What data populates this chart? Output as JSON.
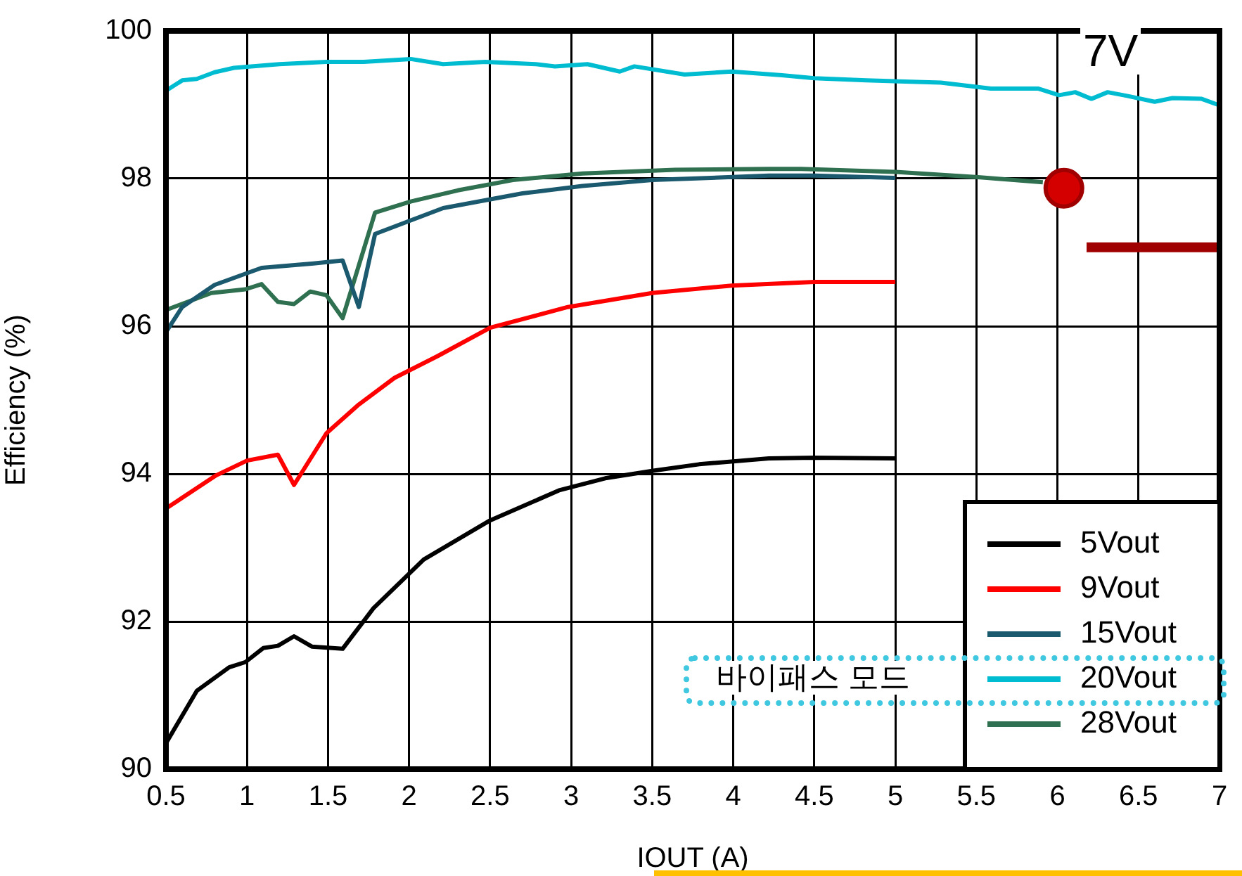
{
  "chart_data": {
    "type": "line",
    "xlabel": "IOUT (A)",
    "ylabel": "Efficiency (%)",
    "xlim": [
      0.5,
      7
    ],
    "xticks": [
      0.5,
      1,
      1.5,
      2,
      2.5,
      3,
      3.5,
      4,
      4.5,
      5,
      5.5,
      6,
      6.5,
      7
    ],
    "ylim": [
      90,
      100
    ],
    "yticks": [
      90,
      92,
      94,
      96,
      98,
      100
    ],
    "grid": true,
    "legend": "bottom right",
    "marker": "none",
    "line_style": "solid",
    "annotations": [
      "7V",
      "바이패스 모드"
    ],
    "series": [
      {
        "name": "5Vout",
        "color": "#000000",
        "x": [
          0.5,
          0.69,
          0.89,
          0.99,
          1.1,
          1.19,
          1.29,
          1.4,
          1.59,
          1.78,
          2.09,
          2.5,
          2.93,
          3.21,
          3.5,
          3.79,
          4.22,
          4.5,
          5
        ],
        "values": [
          90.35,
          91.06,
          91.38,
          91.45,
          91.64,
          91.67,
          91.8,
          91.66,
          91.63,
          92.18,
          92.84,
          93.37,
          93.78,
          93.94,
          94.04,
          94.13,
          94.21,
          94.22,
          94.21
        ]
      },
      {
        "name": "9Vout",
        "color": "#ff0000",
        "x": [
          0.5,
          0.81,
          1.0,
          1.19,
          1.29,
          1.49,
          1.69,
          1.91,
          2.18,
          2.5,
          2.98,
          3.5,
          3.99,
          4.5,
          5
        ],
        "values": [
          93.53,
          93.98,
          94.18,
          94.26,
          93.85,
          94.55,
          94.94,
          95.3,
          95.6,
          95.98,
          96.26,
          96.45,
          96.55,
          96.6,
          96.6
        ]
      },
      {
        "name": "15Vout",
        "color": "#1b5a6e",
        "x": [
          0.5,
          0.6,
          0.8,
          1.09,
          1.41,
          1.59,
          1.69,
          1.79,
          2.21,
          2.7,
          3.07,
          3.5,
          4.22,
          4.5,
          5
        ],
        "values": [
          95.92,
          96.26,
          96.56,
          96.79,
          96.85,
          96.89,
          96.26,
          97.25,
          97.6,
          97.8,
          97.9,
          97.98,
          98.04,
          98.04,
          98.01
        ]
      },
      {
        "name": "20Vout",
        "color": "#00bcd0",
        "x": [
          0.5,
          0.6,
          0.69,
          0.8,
          0.92,
          1.2,
          1.49,
          1.72,
          2.01,
          2.21,
          2.47,
          2.78,
          2.9,
          3.1,
          3.3,
          3.39,
          3.7,
          3.99,
          4.3,
          4.5,
          4.82,
          5.28,
          5.59,
          5.88,
          6.01,
          6.11,
          6.21,
          6.31,
          6.43,
          6.6,
          6.71,
          6.89,
          6.99
        ],
        "values": [
          99.19,
          99.33,
          99.35,
          99.44,
          99.5,
          99.55,
          99.58,
          99.58,
          99.62,
          99.55,
          99.58,
          99.55,
          99.52,
          99.55,
          99.45,
          99.52,
          99.41,
          99.45,
          99.4,
          99.36,
          99.33,
          99.3,
          99.22,
          99.22,
          99.13,
          99.17,
          99.08,
          99.17,
          99.12,
          99.04,
          99.09,
          99.08,
          99.0
        ]
      },
      {
        "name": "28Vout",
        "color": "#2e7050",
        "x": [
          0.5,
          0.78,
          0.99,
          1.09,
          1.19,
          1.29,
          1.39,
          1.49,
          1.59,
          1.79,
          2.01,
          2.3,
          2.64,
          3.07,
          3.64,
          4.22,
          4.42,
          5,
          5.51,
          5.91
        ],
        "values": [
          96.22,
          96.45,
          96.5,
          96.57,
          96.33,
          96.3,
          96.47,
          96.42,
          96.11,
          97.54,
          97.69,
          97.84,
          97.98,
          98.07,
          98.12,
          98.13,
          98.13,
          98.09,
          98.02,
          97.95
        ]
      },
      {
        "type": "scatter",
        "marker": "circle",
        "color": "#d40000",
        "x": [
          6.04
        ],
        "values": [
          97.87
        ]
      },
      {
        "color": "#a00000",
        "x": [
          6.18,
          7
        ],
        "values": [
          97.07,
          97.07
        ]
      }
    ]
  }
}
